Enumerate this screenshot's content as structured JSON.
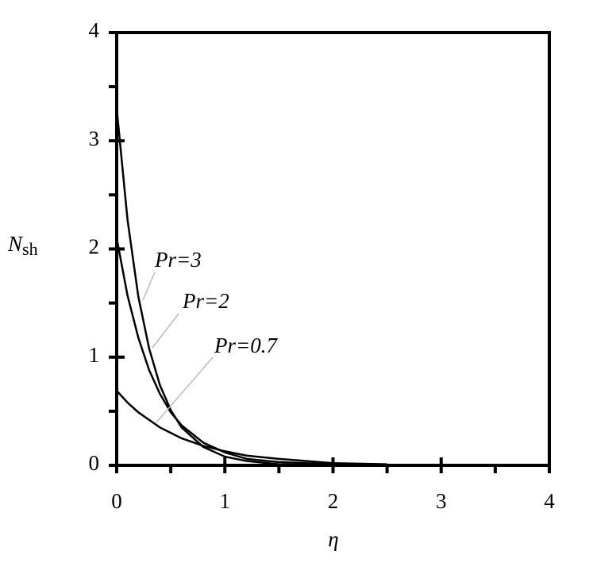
{
  "chart_data": {
    "type": "line",
    "x_label": "η",
    "y_label": {
      "text": "N",
      "subscript": "sh"
    },
    "x": [
      0,
      0.1,
      0.2,
      0.3,
      0.4,
      0.5,
      0.6,
      0.8,
      1.0,
      1.2,
      1.5,
      2.0,
      2.5
    ],
    "series": [
      {
        "name": "Pr=3",
        "color": "#000000",
        "values": [
          3.3,
          2.27,
          1.56,
          1.08,
          0.74,
          0.51,
          0.35,
          0.17,
          0.08,
          0.04,
          0.01,
          0,
          0
        ]
      },
      {
        "name": "Pr=2",
        "color": "#000000",
        "values": [
          2.1,
          1.57,
          1.18,
          0.88,
          0.66,
          0.49,
          0.37,
          0.21,
          0.12,
          0.06,
          0.03,
          0.01,
          0
        ]
      },
      {
        "name": "Pr=0.7",
        "color": "#000000",
        "values": [
          0.69,
          0.58,
          0.49,
          0.42,
          0.35,
          0.3,
          0.25,
          0.18,
          0.13,
          0.09,
          0.06,
          0.02,
          0.01
        ]
      }
    ],
    "xlim": [
      0,
      4
    ],
    "ylim": [
      0,
      4
    ],
    "xticks": [
      0,
      1,
      2,
      3,
      4
    ],
    "yticks": [
      0,
      1,
      2,
      3,
      4
    ],
    "minor_xticks": [
      0.5,
      1.5,
      2.5,
      3.5
    ],
    "minor_yticks": [
      0.5,
      1.5,
      2.5,
      3.5
    ],
    "grid": false
  }
}
